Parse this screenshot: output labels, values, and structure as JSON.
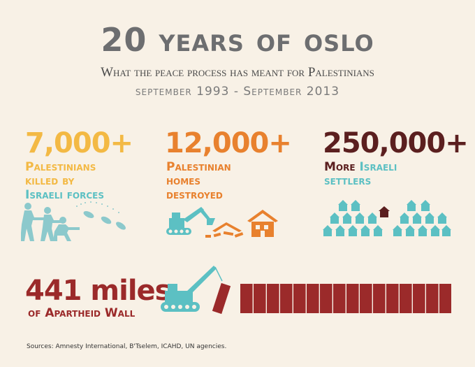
{
  "header": {
    "title_num": "20",
    "title_text": "years of oslo",
    "subtitle": "What the peace process has meant for Palestinians",
    "dates": "september 1993 - September 2013"
  },
  "stats": {
    "killed": {
      "number": "7,000+",
      "line1": "Palestinians",
      "line2": "killed by",
      "line3": "Israeli forces"
    },
    "homes": {
      "number": "12,000+",
      "line1": "Palestinian",
      "line2": "homes",
      "line3": "destroyed"
    },
    "settlers": {
      "number": "250,000+",
      "line1_a": "More",
      "line1_b": "Israeli",
      "line2": "settlers"
    },
    "wall": {
      "number": "441 miles",
      "label": "of Apartheid Wall"
    }
  },
  "sources": "Sources: Amnesty International, B'Tselem, ICAHD, UN agencies.",
  "colors": {
    "background": "#f8f1e6",
    "yellow": "#f3b944",
    "teal": "#5cc0c3",
    "orange": "#e8812e",
    "maroon": "#5b1f1f",
    "red": "#9b2a2a",
    "gray": "#6d6e70"
  },
  "icons": {
    "killed": "soldiers-shooting-icon",
    "homes": "bulldozer-demolition-icon",
    "settlers": "settlement-houses-icon",
    "wall": "crane-wall-icon"
  }
}
